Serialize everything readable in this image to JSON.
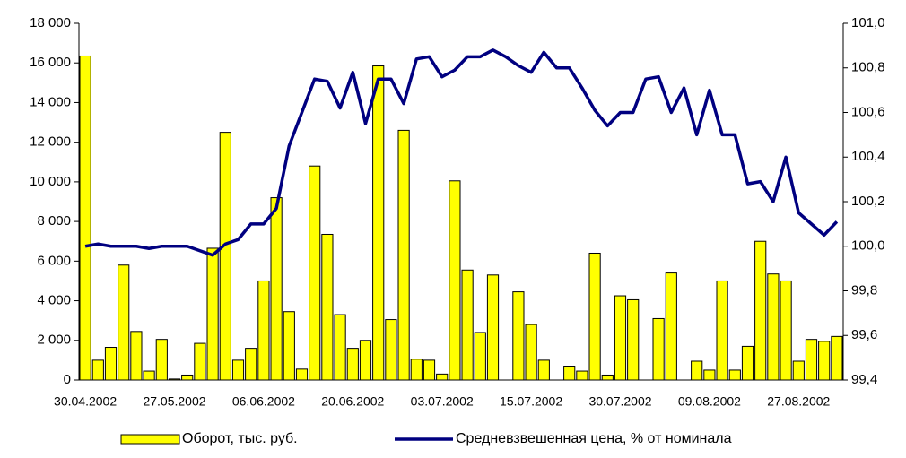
{
  "chart_data": {
    "type": "bar_line",
    "categories": [
      "30.04.2002",
      null,
      null,
      null,
      null,
      null,
      null,
      "27.05.2002",
      null,
      null,
      null,
      null,
      null,
      null,
      "06.06.2002",
      null,
      null,
      null,
      null,
      null,
      null,
      "20.06.2002",
      null,
      null,
      null,
      null,
      null,
      null,
      "03.07.2002",
      null,
      null,
      null,
      null,
      null,
      null,
      "15.07.2002",
      null,
      null,
      null,
      null,
      null,
      null,
      "30.07.2002",
      null,
      null,
      null,
      null,
      null,
      null,
      "09.08.2002",
      null,
      null,
      null,
      null,
      null,
      null,
      "27.08.2002",
      null,
      null,
      null
    ],
    "series": [
      {
        "name": "Оборот, тыс. руб.",
        "type": "bar",
        "color": "#ffff00",
        "values": [
          16350,
          1000,
          1650,
          5800,
          2450,
          450,
          2050,
          50,
          250,
          1850,
          6650,
          12500,
          1000,
          1600,
          5000,
          9200,
          3450,
          550,
          10800,
          7350,
          3300,
          1600,
          2000,
          15850,
          3050,
          12600,
          1050,
          1000,
          300,
          10050,
          5550,
          2400,
          5300,
          0,
          4450,
          2800,
          1000,
          0,
          700,
          450,
          6400,
          250,
          4250,
          4050,
          0,
          3100,
          5400,
          0,
          950,
          500,
          5000,
          500,
          1700,
          7000,
          5350,
          5000,
          950,
          2050,
          1950,
          2200
        ]
      },
      {
        "name": "Средневзвешенная цена, % от номинала",
        "type": "line",
        "axis": "y2",
        "color": "#000080",
        "values": [
          100.0,
          100.01,
          100.0,
          100.0,
          100.0,
          99.99,
          100.0,
          100.0,
          100.0,
          99.98,
          99.96,
          100.01,
          100.03,
          100.1,
          100.1,
          100.17,
          100.45,
          100.6,
          100.75,
          100.74,
          100.62,
          100.78,
          100.55,
          100.75,
          100.75,
          100.64,
          100.84,
          100.85,
          100.76,
          100.79,
          100.85,
          100.85,
          100.88,
          100.85,
          100.81,
          100.78,
          100.87,
          100.8,
          100.8,
          100.71,
          100.61,
          100.54,
          100.6,
          100.6,
          100.75,
          100.76,
          100.6,
          100.71,
          100.5,
          100.7,
          100.5,
          100.5,
          100.28,
          100.29,
          100.2,
          100.4,
          100.15,
          100.1,
          100.05,
          100.11
        ]
      }
    ],
    "ylim": [
      0,
      18000
    ],
    "yticks": [
      0,
      {
        "value": 2000,
        "label": "2 000"
      },
      {
        "value": 4000,
        "label": "4 000"
      },
      {
        "value": 6000,
        "label": "6 000"
      },
      {
        "value": 8000,
        "label": "8 000"
      },
      {
        "value": 10000,
        "label": "10 000"
      },
      {
        "value": 12000,
        "label": "12 000"
      },
      {
        "value": 14000,
        "label": "14 000"
      },
      {
        "value": 16000,
        "label": "16 000"
      },
      {
        "value": 18000,
        "label": "18 000"
      }
    ],
    "y2lim": [
      99.4,
      101.0
    ],
    "y2ticks": [
      {
        "value": 99.4,
        "label": "99,4"
      },
      {
        "value": 99.6,
        "label": "99,6"
      },
      {
        "value": 99.8,
        "label": "99,8"
      },
      {
        "value": 100.0,
        "label": "100,0"
      },
      {
        "value": 100.2,
        "label": "100,2"
      },
      {
        "value": 100.4,
        "label": "100,4"
      },
      {
        "value": 100.6,
        "label": "100,6"
      },
      {
        "value": 100.8,
        "label": "100,8"
      },
      {
        "value": 101.0,
        "label": "101,0"
      }
    ],
    "legend": "bottom"
  }
}
